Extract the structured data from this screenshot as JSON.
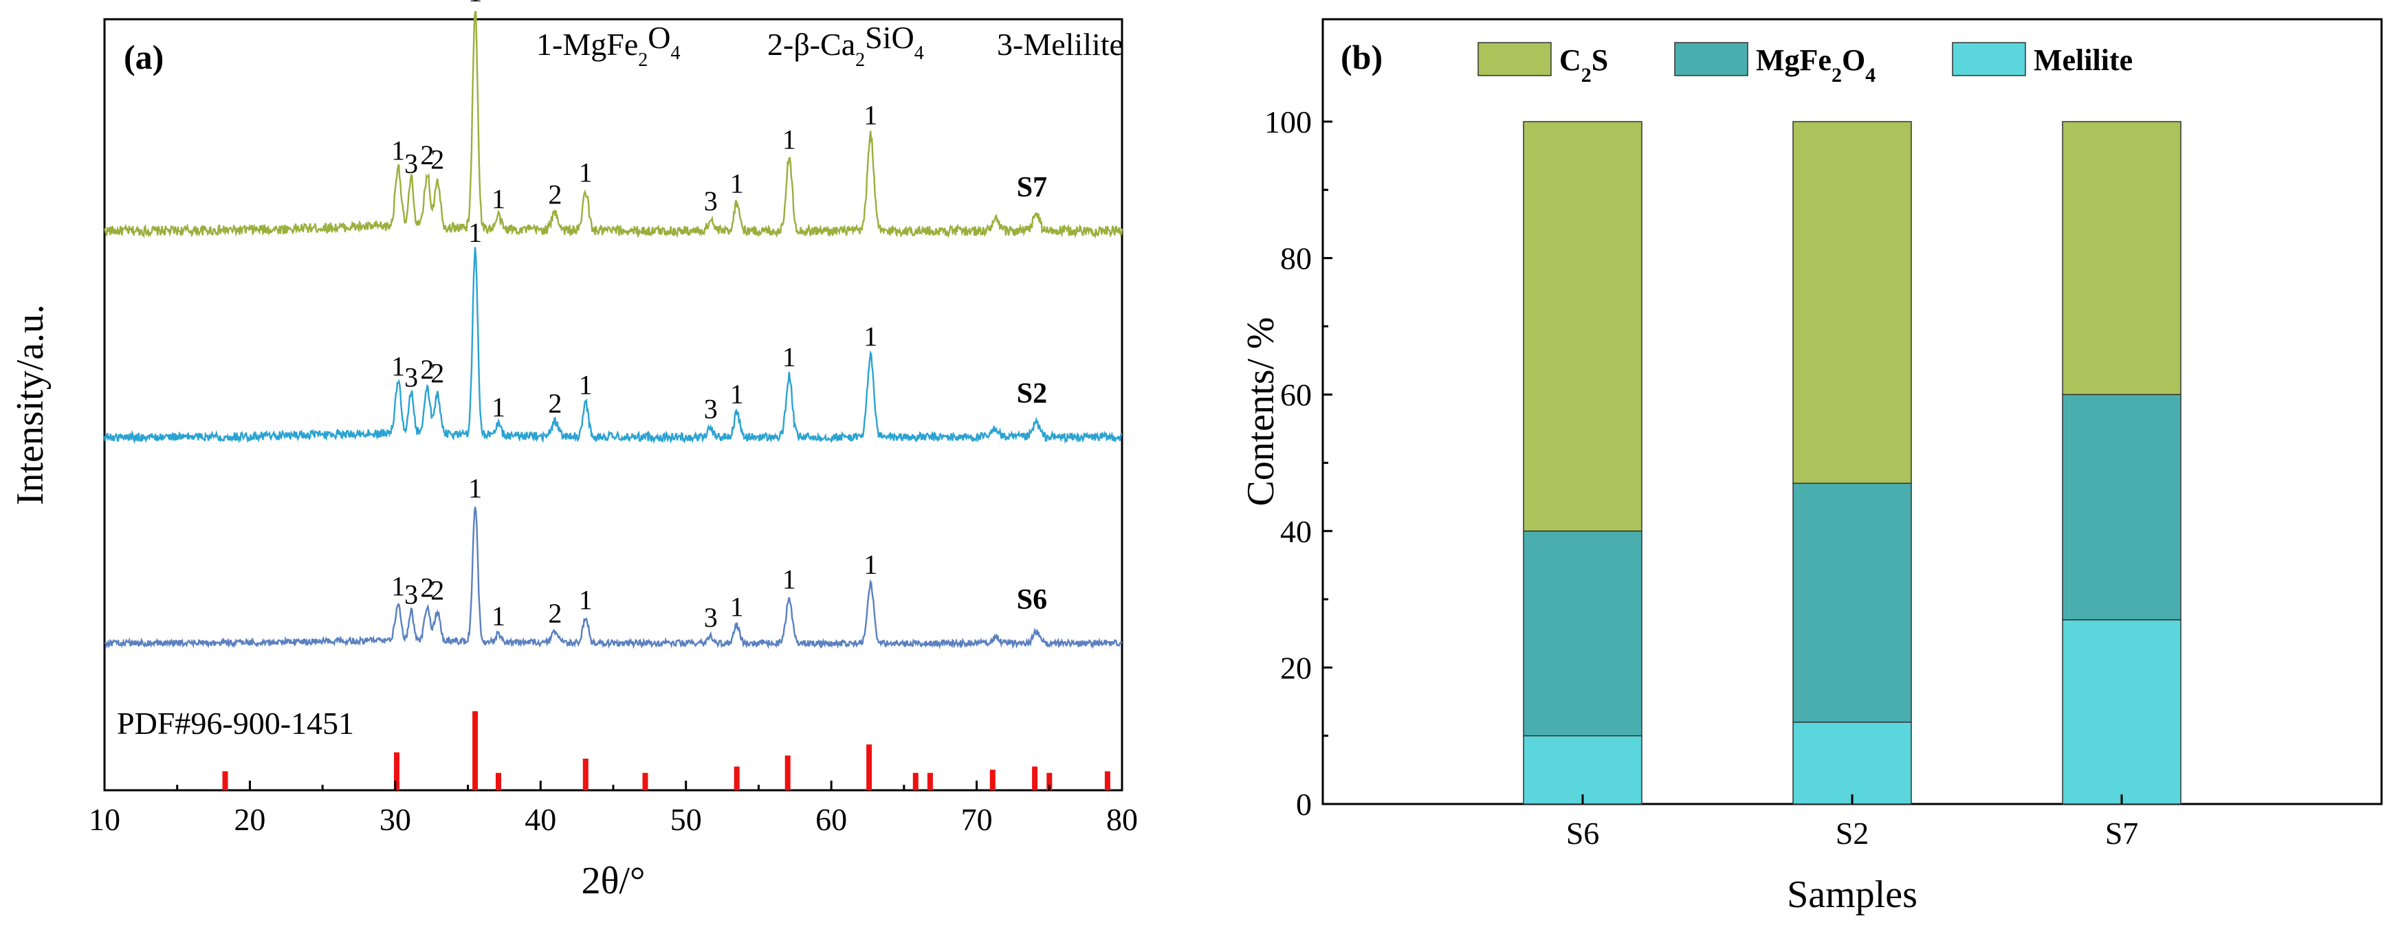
{
  "chart_data": [
    {
      "type": "line",
      "panel_label": "(a)",
      "xlabel": "2θ/°",
      "ylabel": "Intensity/a.u.",
      "xlim": [
        10,
        80
      ],
      "xticks": [
        "10",
        "20",
        "30",
        "40",
        "50",
        "60",
        "70",
        "80"
      ],
      "legend": [
        {
          "num": "1-",
          "pre": "MgFe",
          "sub1": "2",
          "mid": "O",
          "sub2": "4",
          "post": ""
        },
        {
          "num": "2-",
          "pre": "β-Ca",
          "sub1": "2",
          "mid": "SiO",
          "sub2": "4",
          "post": ""
        },
        {
          "num": "3-",
          "pre": "Melilite",
          "sub1": "",
          "mid": "",
          "sub2": "",
          "post": ""
        }
      ],
      "peaks": [
        {
          "x": 30.2,
          "h": 0.28,
          "w": 0.35,
          "label": "1",
          "dy": 0
        },
        {
          "x": 31.1,
          "h": 0.22,
          "w": 0.3,
          "label": "3",
          "dy": 0
        },
        {
          "x": 32.2,
          "h": 0.24,
          "w": 0.35,
          "label": "2",
          "dy": -6
        },
        {
          "x": 32.9,
          "h": 0.22,
          "w": 0.35,
          "label": "2",
          "dy": -6
        },
        {
          "x": 35.5,
          "h": 1.0,
          "w": 0.32,
          "label": "1",
          "dy": 0
        },
        {
          "x": 37.1,
          "h": 0.06,
          "w": 0.3,
          "label": "1",
          "dy": 0
        },
        {
          "x": 41.0,
          "h": 0.08,
          "w": 0.4,
          "label": "2",
          "dy": 0
        },
        {
          "x": 43.1,
          "h": 0.18,
          "w": 0.35,
          "label": "1",
          "dy": 0
        },
        {
          "x": 51.7,
          "h": 0.05,
          "w": 0.35,
          "label": "3",
          "dy": 0
        },
        {
          "x": 53.5,
          "h": 0.13,
          "w": 0.35,
          "label": "1",
          "dy": 0
        },
        {
          "x": 57.1,
          "h": 0.33,
          "w": 0.38,
          "label": "1",
          "dy": 0
        },
        {
          "x": 62.7,
          "h": 0.44,
          "w": 0.4,
          "label": "1",
          "dy": 0
        },
        {
          "x": 71.3,
          "h": 0.05,
          "w": 0.4,
          "label": "",
          "dy": 0
        },
        {
          "x": 74.1,
          "h": 0.08,
          "w": 0.4,
          "label": "",
          "dy": 0
        }
      ],
      "series": [
        {
          "name": "S7",
          "color": "#9aaf3c",
          "scale": 1.0
        },
        {
          "name": "S2",
          "color": "#2aa3d2",
          "scale": 1.0
        },
        {
          "name": "S6",
          "color": "#5a80c0",
          "scale": 0.9
        }
      ],
      "reference": {
        "label": "PDF#96-900-1451",
        "color": "#ee1111",
        "lines": [
          {
            "x": 18.3,
            "v": 0.24
          },
          {
            "x": 30.1,
            "v": 0.48
          },
          {
            "x": 35.5,
            "v": 1.0
          },
          {
            "x": 37.1,
            "v": 0.22
          },
          {
            "x": 43.1,
            "v": 0.4
          },
          {
            "x": 47.2,
            "v": 0.22
          },
          {
            "x": 53.5,
            "v": 0.3
          },
          {
            "x": 57.0,
            "v": 0.44
          },
          {
            "x": 62.6,
            "v": 0.58
          },
          {
            "x": 65.8,
            "v": 0.22
          },
          {
            "x": 66.8,
            "v": 0.22
          },
          {
            "x": 71.1,
            "v": 0.26
          },
          {
            "x": 74.0,
            "v": 0.3
          },
          {
            "x": 75.0,
            "v": 0.22
          },
          {
            "x": 79.0,
            "v": 0.24
          }
        ]
      }
    },
    {
      "type": "bar",
      "stacked": true,
      "panel_label": "(b)",
      "xlabel": "Samples",
      "ylabel": "Contents/ %",
      "ylim": [
        0,
        115
      ],
      "yticks": [
        0,
        20,
        40,
        60,
        80,
        100
      ],
      "categories": [
        "S6",
        "S2",
        "S7"
      ],
      "series": [
        {
          "name": "Melilite",
          "color": "#5ad6dc",
          "values": [
            10,
            12,
            27
          ]
        },
        {
          "name": "MgFe2O4",
          "color": "#4aaeae",
          "values": [
            30,
            35,
            33
          ]
        },
        {
          "name": "C2S",
          "color": "#abc35a",
          "values": [
            60,
            53,
            40
          ]
        }
      ],
      "legend": [
        {
          "pre": "C",
          "sub": "2",
          "post": "S",
          "color": "#abc35a"
        },
        {
          "pre": "MgFe",
          "sub": "2",
          "mid": "O",
          "sub2": "4",
          "color": "#4aaeae"
        },
        {
          "pre": "Melilite",
          "sub": "",
          "post": "",
          "color": "#5ad6dc"
        }
      ]
    }
  ]
}
